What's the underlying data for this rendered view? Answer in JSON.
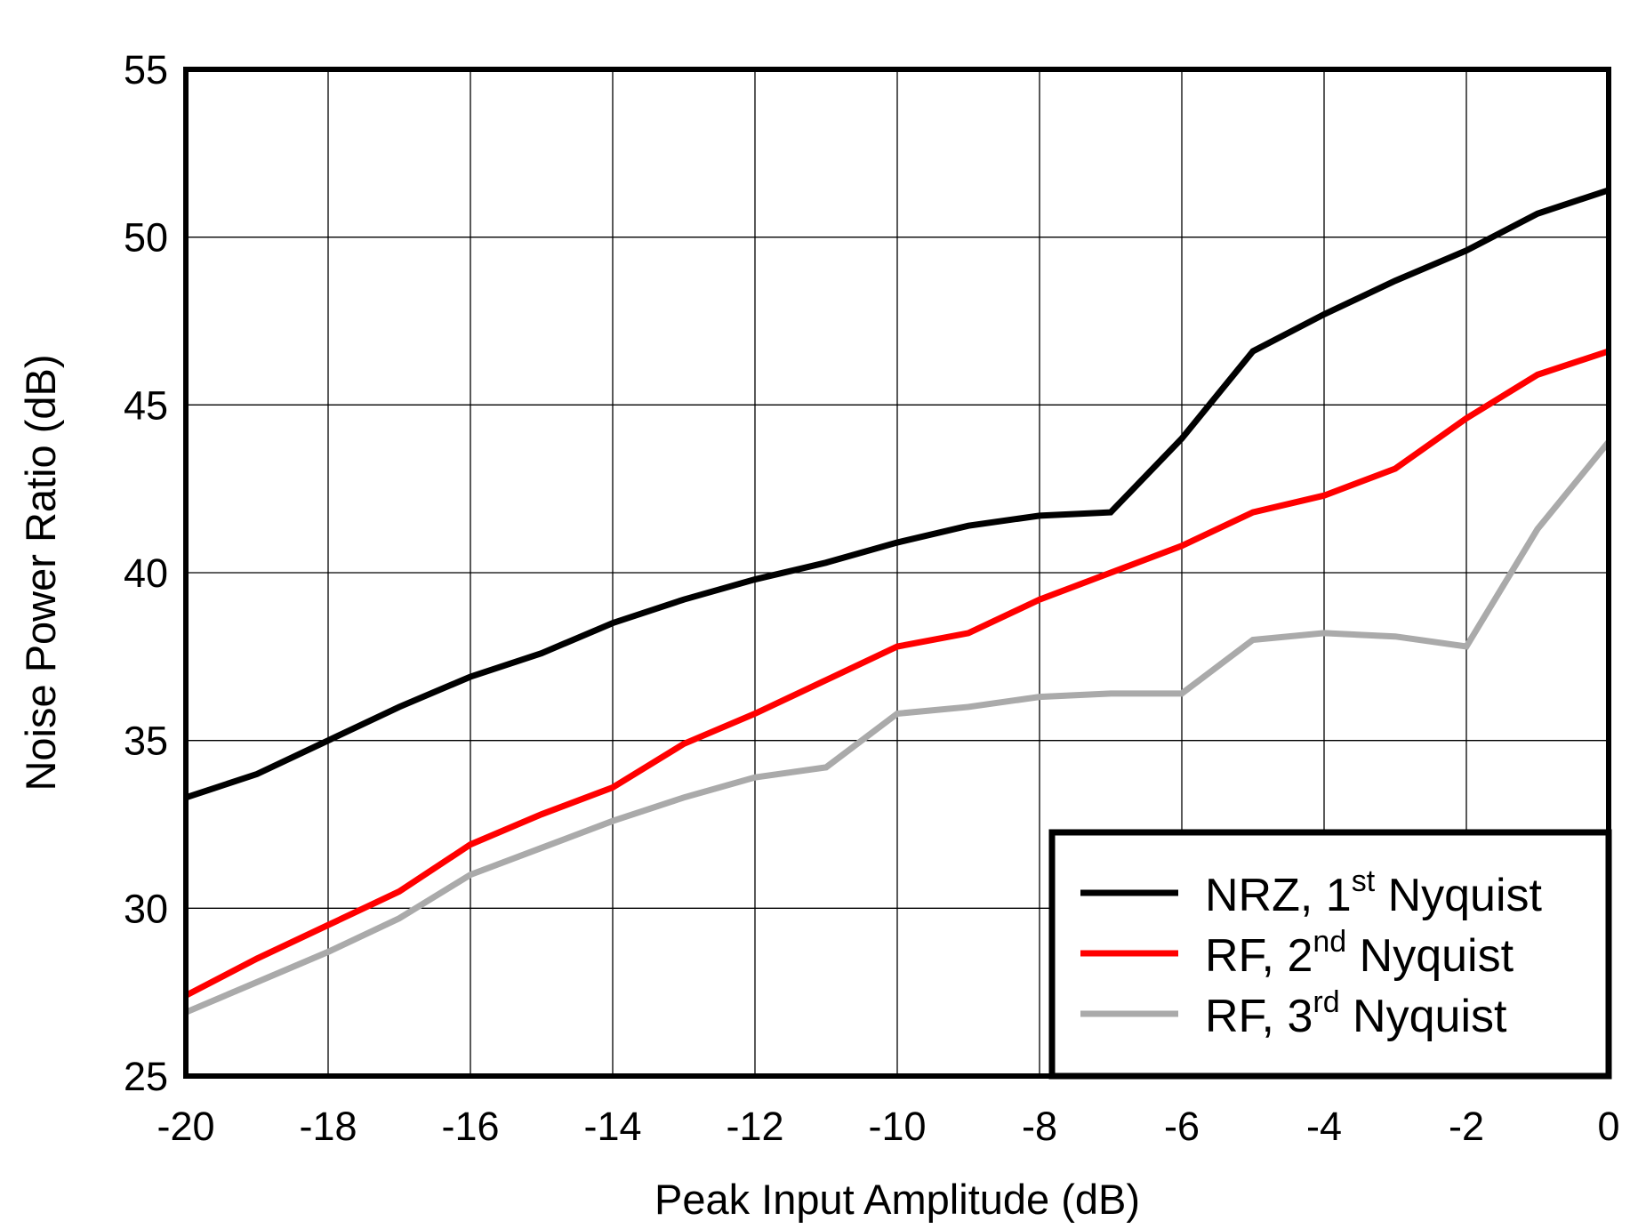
{
  "chart_data": {
    "type": "line",
    "title": "",
    "xlabel": "Peak Input Amplitude (dB)",
    "ylabel": "Noise Power Ratio (dB)",
    "xlim": [
      -20,
      0
    ],
    "ylim": [
      25,
      55
    ],
    "x_ticks": [
      -20,
      -18,
      -16,
      -14,
      -12,
      -10,
      -8,
      -6,
      -4,
      -2,
      0
    ],
    "y_ticks": [
      25,
      30,
      35,
      40,
      45,
      50,
      55
    ],
    "grid": true,
    "legend_position": "lower right",
    "x": [
      -20,
      -19,
      -18,
      -17,
      -16,
      -15,
      -14,
      -13,
      -12,
      -11,
      -10,
      -9,
      -8,
      -7,
      -6,
      -5,
      -4,
      -3,
      -2,
      -1,
      0
    ],
    "series": [
      {
        "name": "NRZ, 1st Nyquist",
        "label_main": "NRZ, 1",
        "label_sup": "st",
        "label_tail": " Nyquist",
        "color": "#000000",
        "values": [
          33.3,
          34.0,
          35.0,
          36.0,
          36.9,
          37.6,
          38.5,
          39.2,
          39.8,
          40.3,
          40.9,
          41.4,
          41.7,
          41.8,
          44.0,
          46.6,
          47.7,
          48.7,
          49.6,
          50.7,
          51.4
        ]
      },
      {
        "name": "RF, 2nd Nyquist",
        "label_main": "RF, 2",
        "label_sup": "nd",
        "label_tail": " Nyquist",
        "color": "#ff0000",
        "values": [
          27.4,
          28.5,
          29.5,
          30.5,
          31.9,
          32.8,
          33.6,
          34.9,
          35.8,
          36.8,
          37.8,
          38.2,
          39.2,
          40.0,
          40.8,
          41.8,
          42.3,
          43.1,
          44.6,
          45.9,
          46.6
        ]
      },
      {
        "name": "RF, 3rd Nyquist",
        "label_main": "RF, 3",
        "label_sup": "rd",
        "label_tail": " Nyquist",
        "color": "#aaaaaa",
        "values": [
          26.9,
          27.8,
          28.7,
          29.7,
          31.0,
          31.8,
          32.6,
          33.3,
          33.9,
          34.2,
          35.8,
          36.0,
          36.3,
          36.4,
          36.4,
          38.0,
          38.2,
          38.1,
          37.8,
          41.3,
          43.9
        ]
      }
    ]
  }
}
